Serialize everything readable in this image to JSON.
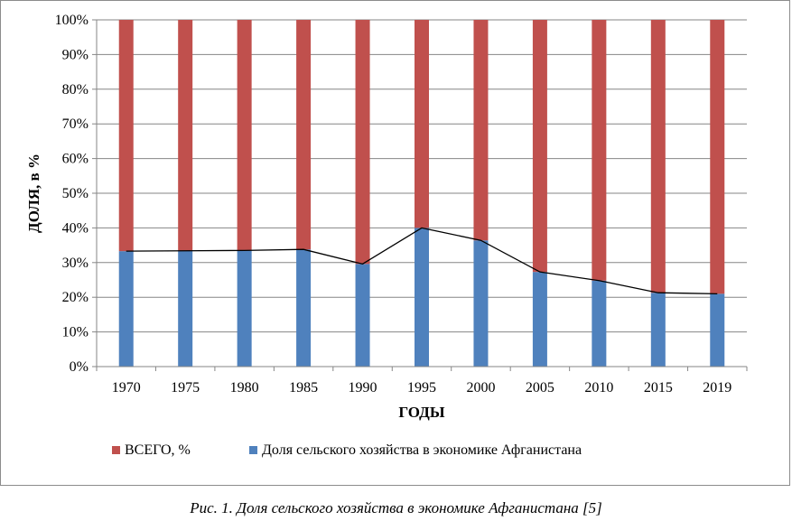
{
  "chart_data": {
    "type": "bar",
    "stacked": true,
    "percent_stacked": true,
    "categories": [
      "1970",
      "1975",
      "1980",
      "1985",
      "1990",
      "1995",
      "2000",
      "2005",
      "2010",
      "2015",
      "2019"
    ],
    "series": [
      {
        "name": "Доля сельского хозяйства в экономике Афганистана",
        "color": "#4f81bd",
        "values": [
          33.3,
          33.4,
          33.5,
          33.8,
          29.6,
          40.0,
          36.4,
          27.3,
          24.8,
          21.3,
          21.0
        ]
      },
      {
        "name": "ВСЕГО, %",
        "color": "#c0504d",
        "values": [
          66.7,
          66.6,
          66.5,
          66.2,
          70.4,
          60.0,
          63.6,
          72.7,
          75.2,
          78.7,
          79.0
        ]
      }
    ],
    "trend_line": {
      "follows_series": "Доля сельского хозяйства в экономике Афганистана",
      "color": "#000000"
    },
    "xlabel": "ГОДЫ",
    "ylabel": "ДОЛЯ, в %",
    "ylim": [
      0,
      100
    ],
    "yticks": [
      "0%",
      "10%",
      "20%",
      "30%",
      "40%",
      "50%",
      "60%",
      "70%",
      "80%",
      "90%",
      "100%"
    ],
    "grid": true,
    "legend_position": "bottom",
    "legend_order": [
      "ВСЕГО, %",
      "Доля сельского хозяйства в экономике Афганистана"
    ]
  },
  "caption": "Рис. 1. Доля сельского хозяйства в экономике Афганистана [5]"
}
